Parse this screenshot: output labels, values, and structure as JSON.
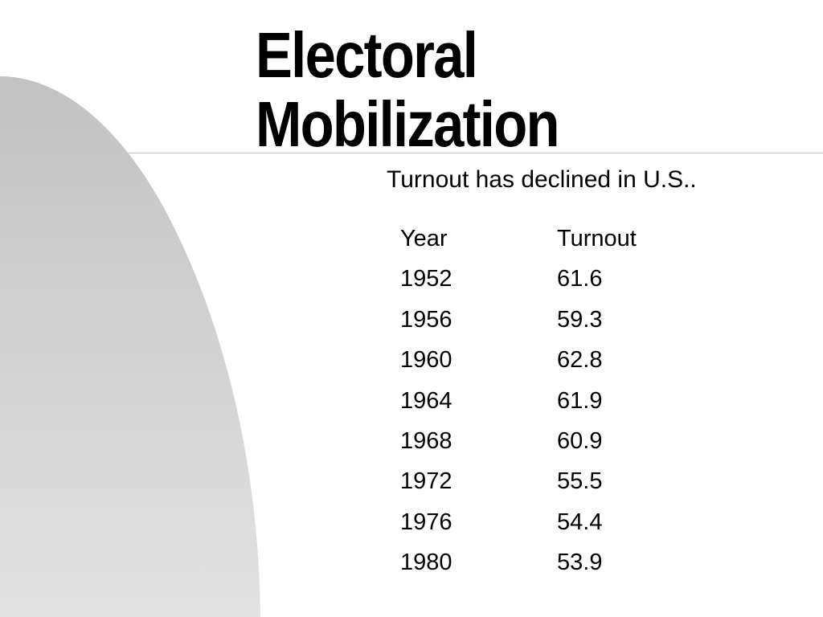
{
  "slide": {
    "title_line1": "Electoral",
    "title_line2": "Mobilization",
    "subtitle": "Turnout has declined in U.S.."
  },
  "table": {
    "headers": [
      "Year",
      "Turnout"
    ],
    "rows": [
      [
        "1952",
        "61.6"
      ],
      [
        "1956",
        "59.3"
      ],
      [
        "1960",
        "62.8"
      ],
      [
        "1964",
        "61.9"
      ],
      [
        "1968",
        "60.9"
      ],
      [
        "1972",
        "55.5"
      ],
      [
        "1976",
        "54.4"
      ],
      [
        "1980",
        "53.9"
      ]
    ]
  },
  "colors": {
    "background": "#ffffff",
    "shape_gradient_top": "#c2c2c2",
    "shape_gradient_bottom": "#e2e2e2",
    "rule": "#c8c8c8",
    "text": "#000000"
  }
}
